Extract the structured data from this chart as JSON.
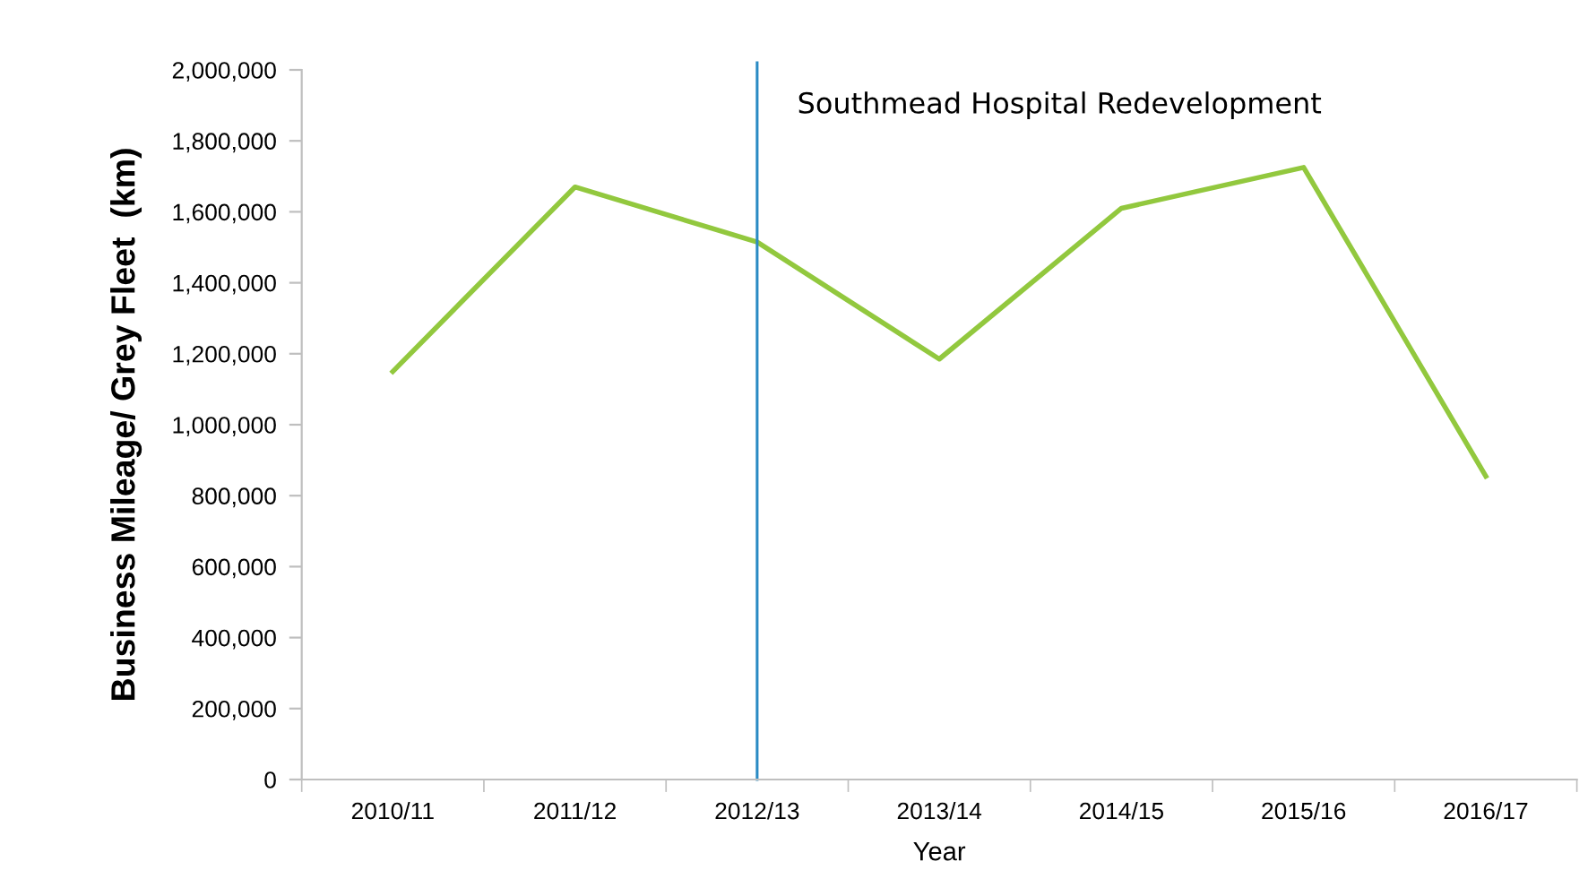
{
  "chart_data": {
    "type": "line",
    "categories": [
      "2010/11",
      "2011/12",
      "2012/13",
      "2013/14",
      "2014/15",
      "2015/16",
      "2016/17"
    ],
    "series": [
      {
        "color": "#92c83e",
        "values": [
          1150000,
          1670000,
          1515000,
          1185000,
          1610000,
          1725000,
          855000
        ]
      }
    ],
    "xlabel": "Year",
    "ylabel": "Business Mileage/ Grey Fleet  (km)",
    "ylim": [
      0,
      2000000
    ],
    "yticks": [
      {
        "value": 0,
        "label": "0"
      },
      {
        "value": 200000,
        "label": "200,000"
      },
      {
        "value": 400000,
        "label": "400,000"
      },
      {
        "value": 600000,
        "label": "600,000"
      },
      {
        "value": 800000,
        "label": "800,000"
      },
      {
        "value": 1000000,
        "label": "1,000,000"
      },
      {
        "value": 1200000,
        "label": "1,200,000"
      },
      {
        "value": 1400000,
        "label": "1,400,000"
      },
      {
        "value": 1600000,
        "label": "1,600,000"
      },
      {
        "value": 1800000,
        "label": "1,800,000"
      },
      {
        "value": 2000000,
        "label": "2,000,000"
      }
    ],
    "ref_lines": [
      {
        "axis": "x",
        "value": "2012/13",
        "label": "Southmead Hospital Redevelopment",
        "color": "#2a8bc4",
        "line_style": "solid"
      }
    ],
    "grid": false,
    "legend": false,
    "marker": "none",
    "line_style": "solid"
  }
}
